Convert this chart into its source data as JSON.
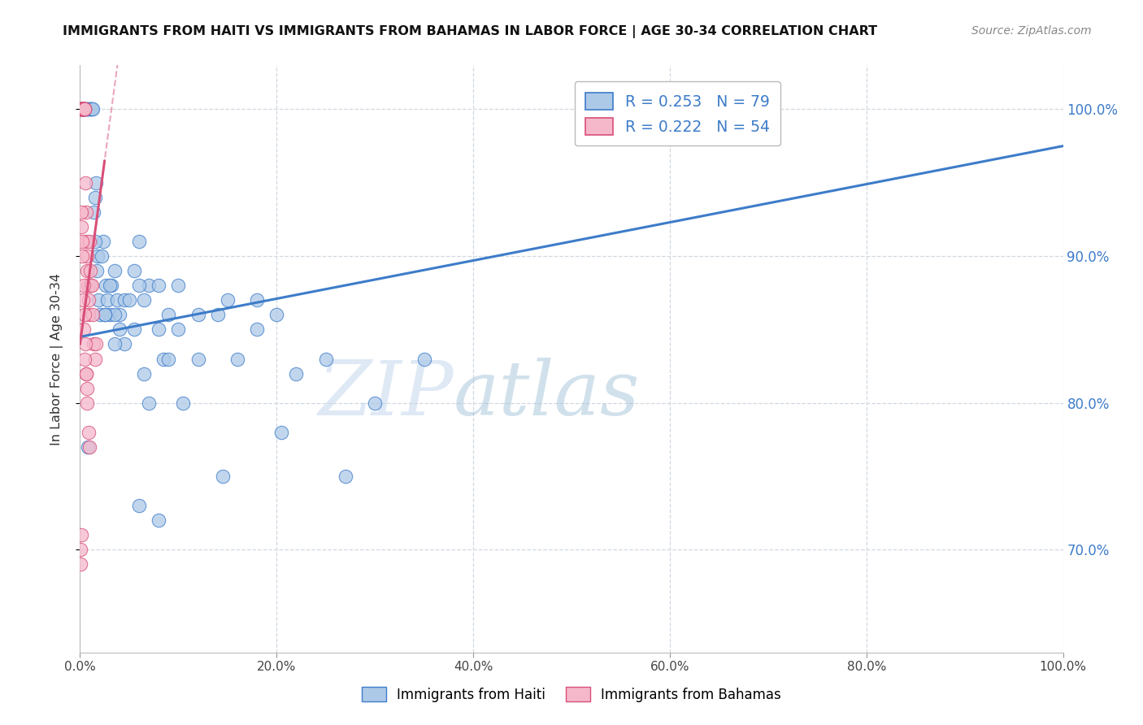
{
  "title": "IMMIGRANTS FROM HAITI VS IMMIGRANTS FROM BAHAMAS IN LABOR FORCE | AGE 30-34 CORRELATION CHART",
  "source": "Source: ZipAtlas.com",
  "ylabel": "In Labor Force | Age 30-34",
  "haiti_R": 0.253,
  "haiti_N": 79,
  "bahamas_R": 0.222,
  "bahamas_N": 54,
  "haiti_color": "#adc9e8",
  "bahamas_color": "#f5b8cb",
  "haiti_line_color": "#3d7cc9",
  "bahamas_line_color": "#d94f78",
  "watermark_zip": "ZIP",
  "watermark_atlas": "atlas",
  "background_color": "#ffffff",
  "grid_color": "#d0d8e0",
  "xlim": [
    0,
    100
  ],
  "ylim": [
    63,
    103
  ],
  "x_ticks": [
    0,
    20,
    40,
    60,
    80,
    100
  ],
  "y_ticks": [
    70,
    80,
    90,
    100
  ],
  "haiti_line_x0": 0,
  "haiti_line_x1": 100,
  "haiti_line_y0": 84.5,
  "haiti_line_y1": 97.5,
  "bahamas_line_x0": 0,
  "bahamas_line_x1": 2.5,
  "bahamas_line_y0": 84.0,
  "bahamas_line_y1": 96.5,
  "bahamas_dash_x0": 0,
  "bahamas_dash_x1": 8,
  "haiti_scatter_x": [
    0.1,
    0.15,
    0.2,
    0.25,
    0.3,
    0.35,
    0.4,
    0.45,
    0.5,
    0.6,
    0.7,
    0.8,
    0.9,
    1.0,
    1.1,
    1.2,
    1.3,
    1.4,
    1.5,
    1.6,
    1.7,
    1.8,
    1.9,
    2.0,
    2.2,
    2.4,
    2.6,
    2.8,
    3.0,
    3.2,
    3.5,
    3.8,
    4.0,
    4.5,
    5.0,
    5.5,
    6.0,
    6.5,
    7.0,
    8.0,
    9.0,
    10.0,
    12.0,
    14.0,
    15.0,
    16.0,
    18.0,
    20.0,
    22.0,
    25.0,
    27.0,
    30.0,
    35.0,
    6.0,
    8.0,
    10.0,
    12.0,
    3.5,
    4.5,
    5.5,
    6.5,
    8.5,
    10.5,
    14.5,
    20.5,
    3.0,
    4.0,
    7.0,
    9.0,
    0.5,
    1.0,
    1.5,
    2.5,
    3.5,
    6.0,
    8.0,
    18.0,
    2.5,
    0.8
  ],
  "haiti_scatter_y": [
    100,
    100,
    100,
    100,
    100,
    100,
    100,
    100,
    100,
    100,
    100,
    100,
    100,
    100,
    100,
    100,
    100,
    93,
    94,
    95,
    89,
    90,
    87,
    86,
    90,
    91,
    88,
    87,
    86,
    88,
    89,
    87,
    86,
    87,
    87,
    89,
    91,
    87,
    88,
    88,
    86,
    88,
    86,
    86,
    87,
    83,
    85,
    86,
    82,
    83,
    75,
    80,
    83,
    88,
    85,
    85,
    83,
    86,
    84,
    85,
    82,
    83,
    80,
    75,
    78,
    88,
    85,
    80,
    83,
    100,
    88,
    91,
    86,
    84,
    73,
    72,
    87,
    86,
    77
  ],
  "bahamas_scatter_x": [
    0.05,
    0.08,
    0.1,
    0.12,
    0.15,
    0.18,
    0.2,
    0.22,
    0.25,
    0.28,
    0.3,
    0.32,
    0.35,
    0.38,
    0.4,
    0.42,
    0.45,
    0.48,
    0.5,
    0.55,
    0.6,
    0.65,
    0.7,
    0.75,
    0.8,
    0.85,
    0.9,
    0.95,
    1.0,
    1.1,
    1.2,
    1.3,
    1.4,
    1.5,
    1.6,
    0.15,
    0.25,
    0.35,
    0.45,
    0.55,
    0.65,
    0.75,
    0.85,
    0.95,
    0.1,
    0.2,
    0.3,
    0.4,
    0.5,
    0.6,
    0.7,
    0.05,
    0.08,
    0.12
  ],
  "bahamas_scatter_y": [
    100,
    100,
    100,
    100,
    100,
    100,
    100,
    100,
    100,
    100,
    100,
    100,
    100,
    100,
    100,
    100,
    100,
    100,
    100,
    95,
    93,
    91,
    90,
    89,
    88,
    87,
    86,
    91,
    89,
    88,
    88,
    86,
    84,
    83,
    84,
    93,
    91,
    88,
    86,
    84,
    82,
    80,
    78,
    77,
    92,
    90,
    87,
    85,
    83,
    82,
    81,
    70,
    69,
    71
  ]
}
